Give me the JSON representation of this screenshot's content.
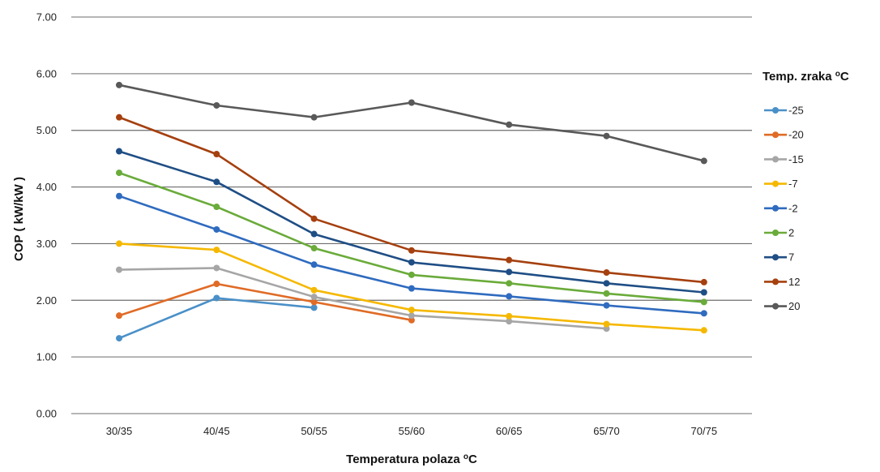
{
  "chart_data": {
    "type": "line",
    "categories": [
      "30/35",
      "40/45",
      "50/55",
      "55/60",
      "60/65",
      "65/70",
      "70/75"
    ],
    "xlabel_text": "Temperatura polaza ",
    "xlabel_unit": "C",
    "ylabel": "COP ( kW/kW )",
    "ylim": [
      0,
      7
    ],
    "yticks": [
      "0.00",
      "1.00",
      "2.00",
      "3.00",
      "4.00",
      "5.00",
      "6.00",
      "7.00"
    ],
    "grid": true,
    "legend_position": "right",
    "legend_title_text": "Temp. zraka ",
    "legend_title_unit": "C",
    "degree_mark": "o",
    "series": [
      {
        "name": "-25",
        "color": "#4a90c8",
        "values": [
          1.33,
          2.04,
          1.87,
          null,
          null,
          null,
          null
        ]
      },
      {
        "name": "-20",
        "color": "#e06b26",
        "values": [
          1.73,
          2.29,
          1.97,
          1.65,
          null,
          null,
          null
        ]
      },
      {
        "name": "-15",
        "color": "#a6a6a6",
        "values": [
          2.54,
          2.57,
          2.06,
          1.73,
          1.63,
          1.5,
          null
        ]
      },
      {
        "name": "-7",
        "color": "#f5b800",
        "values": [
          3.0,
          2.89,
          2.18,
          1.83,
          1.72,
          1.58,
          1.47
        ]
      },
      {
        "name": "-2",
        "color": "#2f6bbf",
        "values": [
          3.84,
          3.25,
          2.63,
          2.21,
          2.07,
          1.91,
          1.77
        ]
      },
      {
        "name": "2",
        "color": "#6aab3a",
        "values": [
          4.25,
          3.65,
          2.92,
          2.45,
          2.3,
          2.12,
          1.97
        ]
      },
      {
        "name": "7",
        "color": "#1f4e85",
        "values": [
          4.63,
          4.09,
          3.17,
          2.67,
          2.5,
          2.3,
          2.14
        ]
      },
      {
        "name": "12",
        "color": "#a5400f",
        "values": [
          5.23,
          4.58,
          3.44,
          2.88,
          2.71,
          2.49,
          2.32
        ]
      },
      {
        "name": "20",
        "color": "#595959",
        "values": [
          5.8,
          5.44,
          5.23,
          5.49,
          5.1,
          4.9,
          4.46
        ]
      }
    ]
  }
}
